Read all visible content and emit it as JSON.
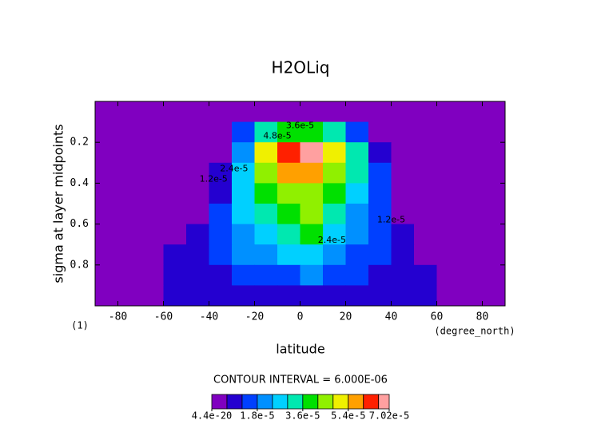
{
  "chart_data": {
    "type": "contour",
    "title": "H2OLiq",
    "x_label": "latitude",
    "y_label": "sigma at layer midpoints",
    "x_units": "(degree_north)",
    "frame_label": "(1)",
    "contour_interval_label": "CONTOUR INTERVAL = 6.000E-06",
    "xlim": [
      -90,
      90
    ],
    "ylim": [
      1,
      0
    ],
    "xticks": [
      -80,
      -60,
      -40,
      -20,
      0,
      20,
      40,
      60,
      80
    ],
    "yticks": [
      0.2,
      0.4,
      0.6,
      0.8
    ],
    "x": [
      -85,
      -75,
      -65,
      -55,
      -45,
      -35,
      -25,
      -15,
      -5,
      5,
      15,
      25,
      35,
      45,
      55,
      65,
      75,
      85
    ],
    "y": [
      0.05,
      0.15,
      0.25,
      0.35,
      0.45,
      0.55,
      0.65,
      0.75,
      0.85,
      0.95
    ],
    "z": [
      [
        0,
        0,
        0,
        0,
        0,
        0,
        3e-06,
        5e-06,
        5e-06,
        5e-06,
        4e-06,
        2e-06,
        0,
        0,
        0,
        0,
        0,
        0
      ],
      [
        0,
        0,
        0,
        0,
        0,
        2e-06,
        1.2e-05,
        3.2e-05,
        3.8e-05,
        3.8e-05,
        3e-05,
        1.6e-05,
        3e-06,
        0,
        0,
        0,
        0,
        0
      ],
      [
        0,
        0,
        0,
        0,
        0,
        5e-06,
        2.2e-05,
        4.8e-05,
        6.4e-05,
        6.8e-05,
        5.2e-05,
        3.2e-05,
        1e-05,
        0,
        0,
        0,
        0,
        0
      ],
      [
        0,
        0,
        0,
        0,
        0,
        8e-06,
        2.6e-05,
        4.6e-05,
        5.6e-05,
        5.4e-05,
        4.4e-05,
        3e-05,
        1.4e-05,
        2e-06,
        0,
        0,
        0,
        0
      ],
      [
        0,
        0,
        0,
        0,
        2e-06,
        1e-05,
        2.6e-05,
        4e-05,
        4.4e-05,
        4.6e-05,
        3.8e-05,
        2.6e-05,
        1.4e-05,
        3e-06,
        0,
        0,
        0,
        0
      ],
      [
        0,
        0,
        0,
        0,
        3e-06,
        1.2e-05,
        2.4e-05,
        3.4e-05,
        4e-05,
        4.2e-05,
        3.2e-05,
        2.2e-05,
        1.2e-05,
        4e-06,
        0,
        0,
        0,
        0
      ],
      [
        0,
        0,
        0,
        1e-06,
        6e-06,
        1.4e-05,
        2.2e-05,
        2.8e-05,
        3.4e-05,
        3.8e-05,
        2.6e-05,
        1.8e-05,
        1.2e-05,
        6e-06,
        1e-06,
        0,
        0,
        0
      ],
      [
        0,
        0,
        2e-06,
        6e-06,
        8e-06,
        1.2e-05,
        1.8e-05,
        2.2e-05,
        2.6e-05,
        2.8e-05,
        2e-05,
        1.6e-05,
        1.2e-05,
        8e-06,
        4e-06,
        2e-06,
        0,
        0
      ],
      [
        0,
        0,
        5e-06,
        6e-06,
        7e-06,
        9e-06,
        1.2e-05,
        1.4e-05,
        1.6e-05,
        1.8e-05,
        1.4e-05,
        1.2e-05,
        1e-05,
        8e-06,
        6e-06,
        4e-06,
        0,
        0
      ],
      [
        0,
        1e-06,
        2e-06,
        6e-06,
        6e-06,
        6e-06,
        7e-06,
        7e-06,
        8e-06,
        8e-06,
        8e-06,
        7e-06,
        6e-06,
        6e-06,
        6e-06,
        3e-06,
        0,
        0
      ]
    ],
    "levels": [
      0,
      6e-06,
      1.2e-05,
      1.8e-05,
      2.4e-05,
      3e-05,
      3.6e-05,
      4.2e-05,
      4.8e-05,
      5.4e-05,
      6e-05,
      6.6e-05
    ],
    "colors": [
      "#8000c0",
      "#2400d0",
      "#0040ff",
      "#0090ff",
      "#00d0ff",
      "#00e8b0",
      "#00e000",
      "#90f000",
      "#f0f000",
      "#ffa000",
      "#ff2000",
      "#ffa0a0"
    ],
    "zlim": [
      4.4e-20,
      7.02e-05
    ],
    "zticks": [
      {
        "value": 4.4e-20,
        "label": "4.4e-20"
      },
      {
        "value": 1.8e-05,
        "label": "1.8e-5"
      },
      {
        "value": 3.6e-05,
        "label": "3.6e-5"
      },
      {
        "value": 5.4e-05,
        "label": "5.4e-5"
      },
      {
        "value": 7.02e-05,
        "label": "7.02e-5"
      }
    ],
    "annotations": [
      {
        "text": "3.6e-5",
        "x": 0,
        "y": 0.12
      },
      {
        "text": "4.8e-5",
        "x": -10,
        "y": 0.17
      },
      {
        "text": "2.4e-5",
        "x": -29,
        "y": 0.33
      },
      {
        "text": "1.2e-5",
        "x": -38,
        "y": 0.38
      },
      {
        "text": "2.4e-5",
        "x": 14,
        "y": 0.68
      },
      {
        "text": "1.2e-5",
        "x": 40,
        "y": 0.58
      }
    ]
  }
}
